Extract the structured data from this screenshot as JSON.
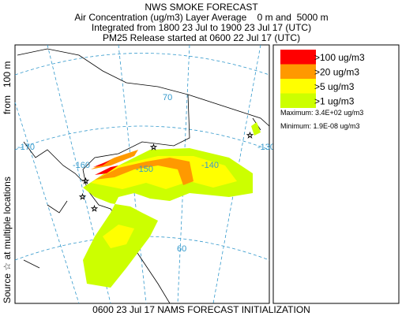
{
  "header": {
    "title": "NWS SMOKE FORECAST",
    "line1": "Air Concentration (ug/m3) Layer Average    0 m and  5000 m",
    "line2": "Integrated from 1800 23 Jul to 1900 23 Jul 17 (UTC)",
    "line3": "PM25 Release started at 0600 22 Jul 17 (UTC)"
  },
  "side_label": {
    "source": "Source ☆ at multiple locations",
    "height": "from   100 m"
  },
  "map": {
    "graticule_labels": [
      "-170",
      "-160",
      "-150",
      "-140",
      "-130",
      "70",
      "60"
    ]
  },
  "legend": {
    "items": [
      {
        "label": ">100 ug/m3",
        "color": "#ff0000"
      },
      {
        "label": ">20 ug/m3",
        "color": "#ff9900"
      },
      {
        "label": ">5 ug/m3",
        "color": "#ffff00"
      },
      {
        "label": ">1 ug/m3",
        "color": "#ccff00"
      }
    ],
    "maximum": "Maximum: 3.4E+02 ug/m3",
    "minimum": "Minimum: 1.9E-08 ug/m3"
  },
  "footer": "0600 23 Jul 17 NAMS FORECAST INITIALIZATION"
}
